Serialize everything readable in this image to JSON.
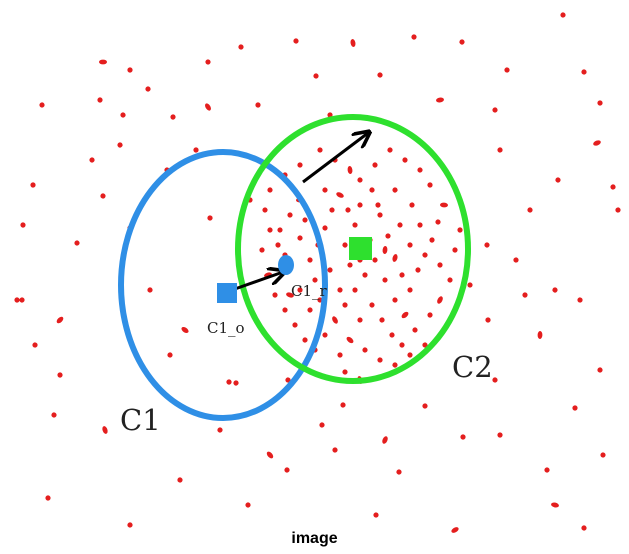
{
  "caption": "image",
  "labels": {
    "cluster_1": "C1",
    "cluster_2": "C2",
    "original_centroid": "C1_o",
    "shifted_centroid": "C1_r"
  },
  "colors": {
    "cluster_1": "#2f8fe6",
    "cluster_2": "#2ee02e",
    "points": "#e41e1e",
    "arrow": "#000000"
  }
}
